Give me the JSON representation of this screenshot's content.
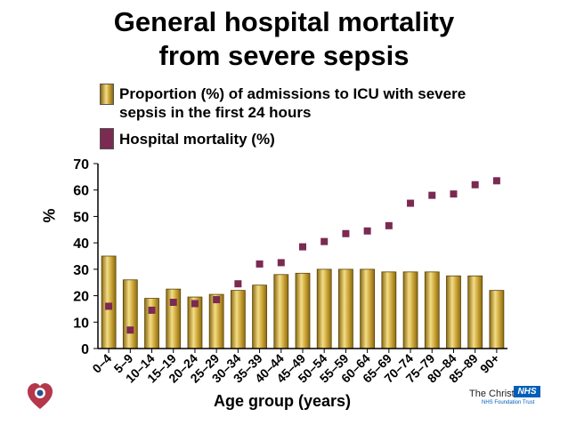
{
  "title_line1": "General hospital mortality",
  "title_line2": "from severe sepsis",
  "legend": {
    "admissions": "Proportion (%) of admissions to ICU with severe",
    "admissions_line2": "sepsis in the first 24 hours",
    "mortality": "Hospital mortality (%)"
  },
  "branding": {
    "org": "The Christie",
    "badge": "NHS",
    "trust": "NHS Foundation Trust"
  },
  "colors": {
    "bar": "#c9a235",
    "bar_light": "#f3dd86",
    "bar_dark": "#8a6a12",
    "marker": "#7b2a52",
    "axis": "#000000",
    "logo": "#b5374a"
  },
  "chart_data": {
    "type": "bar",
    "xlabel": "Age group (years)",
    "ylabel": "%",
    "ylim": [
      0,
      70
    ],
    "yticks": [
      0,
      10,
      20,
      30,
      40,
      50,
      60,
      70
    ],
    "grid": false,
    "legend_position": "top-left",
    "categories": [
      "0–4",
      "5–9",
      "10–14",
      "15–19",
      "20–24",
      "25–29",
      "30–34",
      "35–39",
      "40–44",
      "45–49",
      "50–54",
      "55–59",
      "60–64",
      "65–69",
      "70–74",
      "75–79",
      "80–84",
      "85–89",
      "90+"
    ],
    "series": [
      {
        "name": "Proportion (%) of admissions to ICU with severe sepsis in the first 24 hours",
        "kind": "bar",
        "values": [
          35,
          26,
          19,
          22.5,
          19.5,
          20.5,
          22,
          24,
          28,
          28.5,
          30,
          30,
          30,
          29,
          29,
          29,
          27.5,
          27.5,
          22
        ]
      },
      {
        "name": "Hospital mortality (%)",
        "kind": "marker",
        "values": [
          16,
          7,
          14.5,
          17.5,
          17,
          18.5,
          24.5,
          32,
          32.5,
          38.5,
          40.5,
          43.5,
          44.5,
          46.5,
          55,
          58,
          58.5,
          62,
          63.5
        ]
      }
    ]
  }
}
